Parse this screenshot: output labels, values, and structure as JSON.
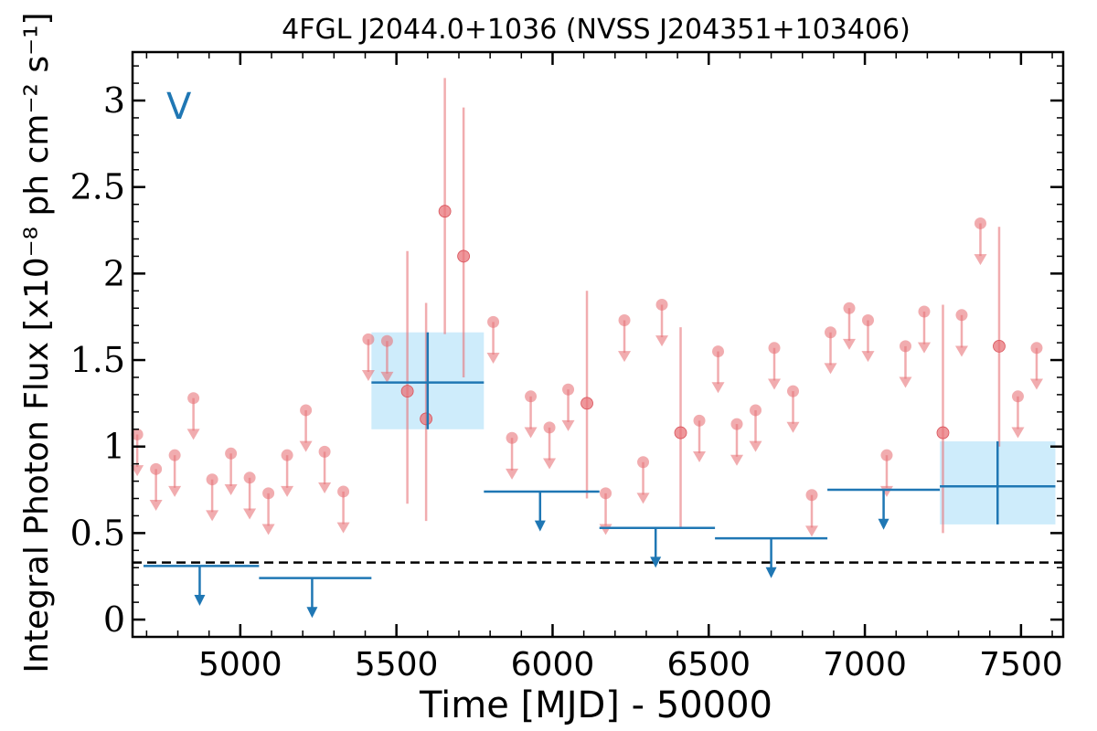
{
  "chart_data": {
    "type": "scatter",
    "title": "4FGL J2044.0+1036 (NVSS J204351+103406)",
    "xlabel": "Time [MJD] - 50000",
    "ylabel": "Integral Photon Flux [x10⁻⁸ ph cm⁻² s⁻¹]",
    "panel_label": "V",
    "xlim": [
      4655,
      7635
    ],
    "ylim": [
      -0.1,
      3.28
    ],
    "xticks": [
      "5000",
      "5500",
      "6000",
      "6500",
      "7000",
      "7500"
    ],
    "yticks": [
      "0",
      "0.5",
      "1",
      "1.5",
      "2",
      "2.5",
      "3"
    ],
    "xtick_values": [
      5000,
      5500,
      6000,
      6500,
      7000,
      7500
    ],
    "ytick_values": [
      0,
      0.5,
      1,
      1.5,
      2,
      2.5,
      3
    ],
    "reference_line": 0.33,
    "colors": {
      "short_bins": "#e8747a",
      "long_bins": "#1f77b4",
      "long_bin_box": "#a6dcf7",
      "reference_line": "#000000"
    },
    "series": [
      {
        "kind": "short-bin upper limits",
        "points": [
          {
            "x": 4670,
            "y": 1.07
          },
          {
            "x": 4730,
            "y": 0.87
          },
          {
            "x": 4790,
            "y": 0.95
          },
          {
            "x": 4850,
            "y": 1.28
          },
          {
            "x": 4910,
            "y": 0.81
          },
          {
            "x": 4970,
            "y": 0.96
          },
          {
            "x": 5030,
            "y": 0.82
          },
          {
            "x": 5090,
            "y": 0.73
          },
          {
            "x": 5150,
            "y": 0.95
          },
          {
            "x": 5210,
            "y": 1.21
          },
          {
            "x": 5270,
            "y": 0.97
          },
          {
            "x": 5330,
            "y": 0.74
          },
          {
            "x": 5410,
            "y": 1.62
          },
          {
            "x": 5470,
            "y": 1.61
          },
          {
            "x": 5810,
            "y": 1.72
          },
          {
            "x": 5870,
            "y": 1.05
          },
          {
            "x": 5930,
            "y": 1.29
          },
          {
            "x": 5990,
            "y": 1.11
          },
          {
            "x": 6050,
            "y": 1.33
          },
          {
            "x": 6170,
            "y": 0.73
          },
          {
            "x": 6230,
            "y": 1.73
          },
          {
            "x": 6290,
            "y": 0.91
          },
          {
            "x": 6350,
            "y": 1.82
          },
          {
            "x": 6470,
            "y": 1.15
          },
          {
            "x": 6530,
            "y": 1.55
          },
          {
            "x": 6590,
            "y": 1.13
          },
          {
            "x": 6650,
            "y": 1.21
          },
          {
            "x": 6710,
            "y": 1.57
          },
          {
            "x": 6770,
            "y": 1.32
          },
          {
            "x": 6830,
            "y": 0.72
          },
          {
            "x": 6890,
            "y": 1.66
          },
          {
            "x": 6950,
            "y": 1.8
          },
          {
            "x": 7010,
            "y": 1.73
          },
          {
            "x": 7070,
            "y": 0.95
          },
          {
            "x": 7130,
            "y": 1.58
          },
          {
            "x": 7190,
            "y": 1.78
          },
          {
            "x": 7310,
            "y": 1.76
          },
          {
            "x": 7370,
            "y": 2.29
          },
          {
            "x": 7490,
            "y": 1.29
          },
          {
            "x": 7550,
            "y": 1.57
          }
        ]
      },
      {
        "kind": "short-bin detections",
        "points": [
          {
            "x": 5535,
            "y": 1.32,
            "ylo": 0.67,
            "yhi": 2.13
          },
          {
            "x": 5595,
            "y": 1.16,
            "ylo": 0.57,
            "yhi": 1.83
          },
          {
            "x": 5655,
            "y": 2.36,
            "ylo": 1.65,
            "yhi": 3.13
          },
          {
            "x": 5715,
            "y": 2.1,
            "ylo": 1.4,
            "yhi": 2.96
          },
          {
            "x": 6110,
            "y": 1.25,
            "ylo": 0.7,
            "yhi": 1.9
          },
          {
            "x": 6410,
            "y": 1.08,
            "ylo": 0.53,
            "yhi": 1.69
          },
          {
            "x": 7250,
            "y": 1.08,
            "ylo": 0.5,
            "yhi": 1.82
          },
          {
            "x": 7430,
            "y": 1.58,
            "ylo": 1.0,
            "yhi": 2.27
          }
        ]
      },
      {
        "kind": "long-bin upper limits",
        "bins": [
          {
            "x0": 4690,
            "x1": 5060,
            "y": 0.31,
            "arrow_x": 4870
          },
          {
            "x0": 5060,
            "x1": 5420,
            "y": 0.24,
            "arrow_x": 5230
          },
          {
            "x0": 5780,
            "x1": 6150,
            "y": 0.74,
            "arrow_x": 5960
          },
          {
            "x0": 6150,
            "x1": 6520,
            "y": 0.53,
            "arrow_x": 6330
          },
          {
            "x0": 6520,
            "x1": 6880,
            "y": 0.47,
            "arrow_x": 6700
          },
          {
            "x0": 6880,
            "x1": 7240,
            "y": 0.75,
            "arrow_x": 7060
          }
        ]
      },
      {
        "kind": "long-bin detections",
        "bins": [
          {
            "x0": 5420,
            "x1": 5780,
            "y": 1.37,
            "ylo": 1.1,
            "yhi": 1.66,
            "x": 5600
          },
          {
            "x0": 7240,
            "x1": 7610,
            "y": 0.77,
            "ylo": 0.55,
            "yhi": 1.03,
            "x": 7425
          }
        ]
      }
    ]
  }
}
